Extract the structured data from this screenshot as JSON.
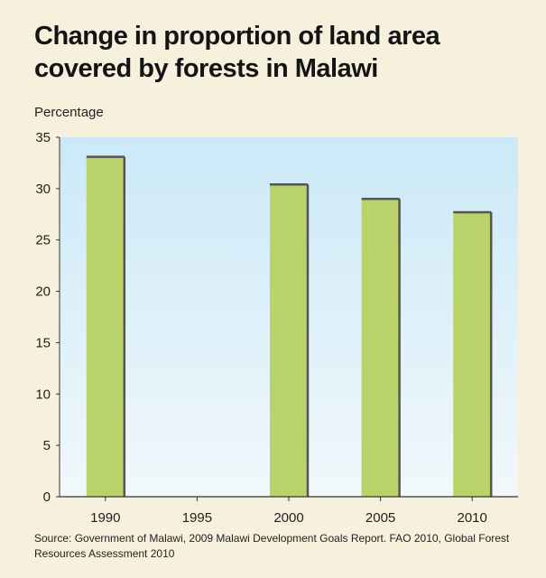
{
  "chart_data": {
    "type": "bar",
    "title": "Change in proportion of land area covered by forests in Malawi",
    "ylabel": "Percentage",
    "xlabel": "",
    "categories": [
      "1990",
      "1995",
      "2000",
      "2005",
      "2010"
    ],
    "values": [
      33.1,
      null,
      30.4,
      29.0,
      27.7
    ],
    "ylim": [
      0,
      35
    ],
    "yticks": [
      "0",
      "5",
      "10",
      "15",
      "20",
      "25",
      "30",
      "35"
    ],
    "grid": false,
    "bar_color": "#b9d26a",
    "plot_background": "gradient light blue",
    "source": "Source: Government of Malawi, 2009 Malawi Development Goals Report. FAO 2010, Global Forest Resources Assessment 2010"
  }
}
